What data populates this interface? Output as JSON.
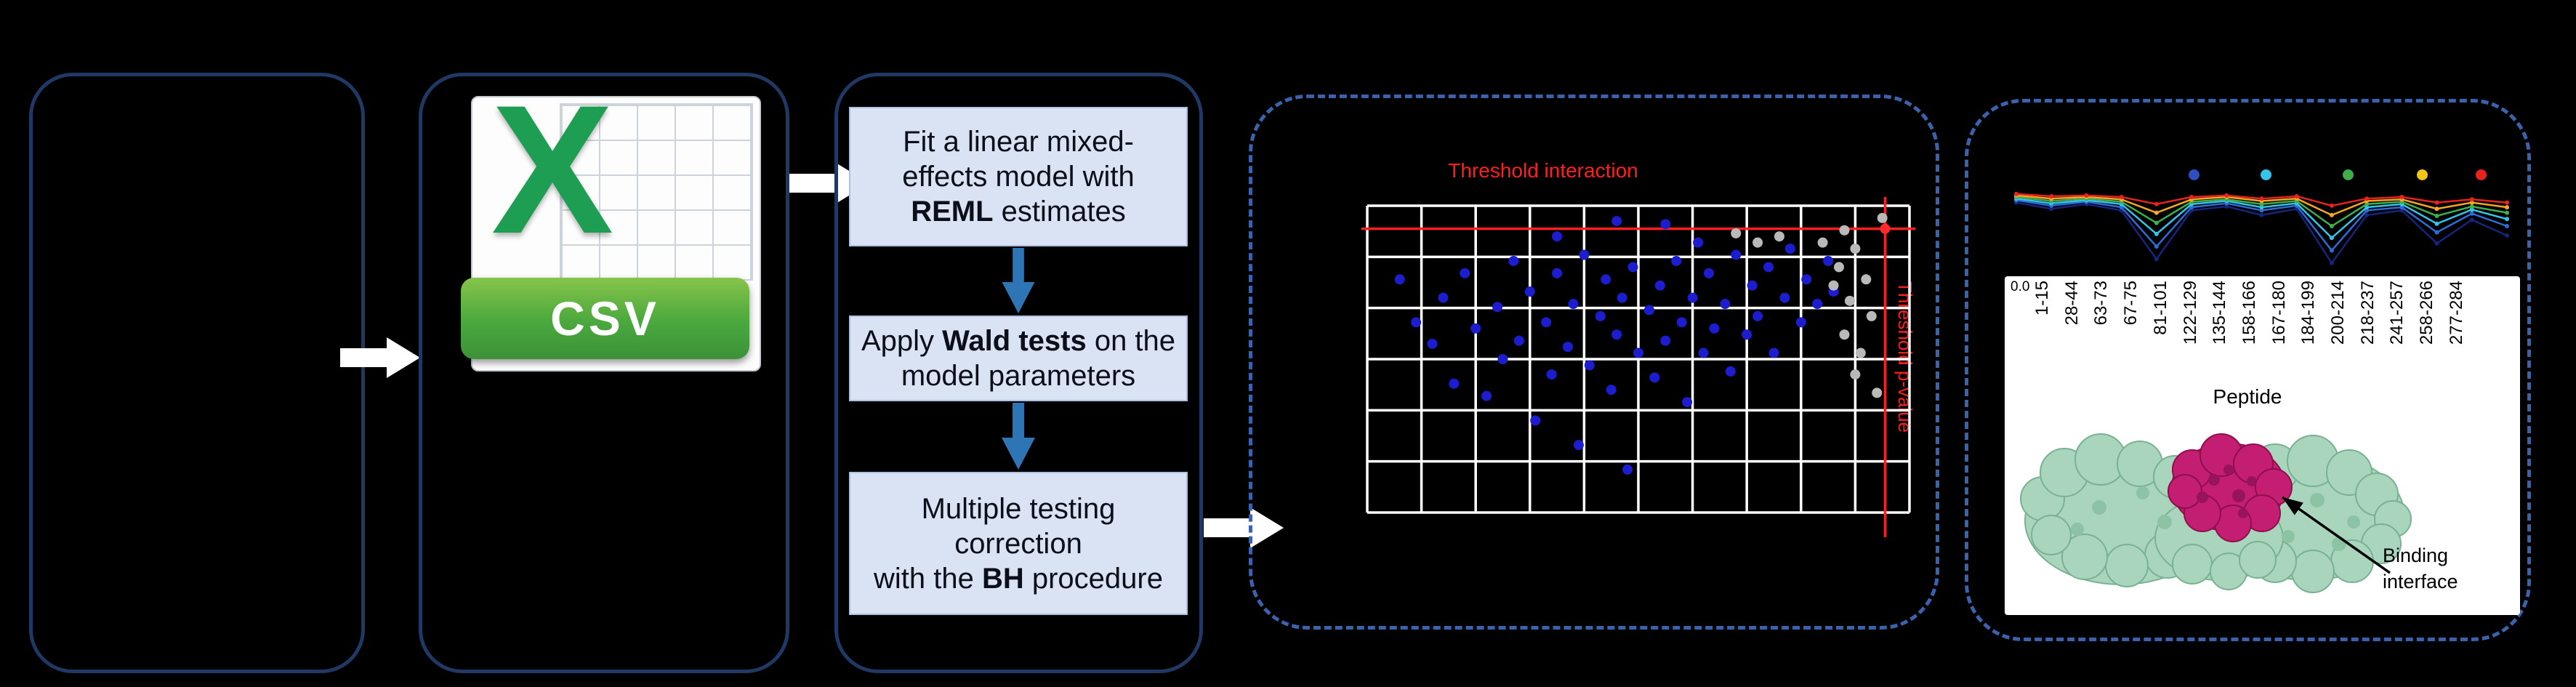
{
  "figure": {
    "csv_icon": {
      "letter": "X",
      "banner_label": "CSV"
    },
    "steps": {
      "step1": {
        "pre": "Fit a linear mixed-effects model with ",
        "bold": "REML",
        "post": " estimates"
      },
      "step2": {
        "pre": "Apply ",
        "bold": "Wald tests",
        "post": " on the model parameters"
      },
      "step3": {
        "line1": "Multiple testing correction",
        "pre": "with the ",
        "bold": "BH",
        "post": " procedure"
      }
    },
    "colors": {
      "solid_box_border": "#1f3864",
      "dashed_box_border": "#3a62ad",
      "step_box_fill": "#dae3f3",
      "step_arrow": "#2e75b6",
      "flow_arrow": "#ffffff"
    }
  },
  "chart_data": [
    {
      "name": "interaction-scatter",
      "type": "scatter",
      "annotations": {
        "threshold_interaction": "Threshold interaction",
        "threshold_pvalue": "Threshold p-value"
      },
      "threshold_color": "#ff1f1f",
      "grid": {
        "v_lines": 11,
        "h_lines": 7,
        "line_color": "#ffffff"
      },
      "hline_y_pct": 7.5,
      "vline_x_pct": 95.5,
      "series": [
        {
          "name": "significant-blue",
          "color": "#1d1dd0",
          "points": [
            [
              6,
              24
            ],
            [
              9,
              38
            ],
            [
              12,
              45
            ],
            [
              14,
              30
            ],
            [
              16,
              58
            ],
            [
              18,
              22
            ],
            [
              20,
              40
            ],
            [
              22,
              62
            ],
            [
              24,
              33
            ],
            [
              25,
              50
            ],
            [
              27,
              18
            ],
            [
              28,
              44
            ],
            [
              30,
              28
            ],
            [
              31,
              70
            ],
            [
              33,
              38
            ],
            [
              34,
              55
            ],
            [
              35,
              22
            ],
            [
              37,
              46
            ],
            [
              38,
              32
            ],
            [
              39,
              78
            ],
            [
              40,
              16
            ],
            [
              41,
              52
            ],
            [
              43,
              36
            ],
            [
              44,
              24
            ],
            [
              45,
              60
            ],
            [
              46,
              42
            ],
            [
              47,
              30
            ],
            [
              48,
              86
            ],
            [
              49,
              20
            ],
            [
              50,
              48
            ],
            [
              52,
              34
            ],
            [
              53,
              56
            ],
            [
              54,
              26
            ],
            [
              55,
              44
            ],
            [
              57,
              18
            ],
            [
              58,
              38
            ],
            [
              59,
              64
            ],
            [
              60,
              30
            ],
            [
              62,
              48
            ],
            [
              63,
              22
            ],
            [
              64,
              40
            ],
            [
              66,
              32
            ],
            [
              67,
              54
            ],
            [
              68,
              16
            ],
            [
              70,
              42
            ],
            [
              71,
              26
            ],
            [
              72,
              36
            ],
            [
              74,
              20
            ],
            [
              75,
              48
            ],
            [
              77,
              30
            ],
            [
              78,
              14
            ],
            [
              80,
              38
            ],
            [
              81,
              24
            ],
            [
              83,
              32
            ],
            [
              85,
              18
            ],
            [
              86,
              28
            ],
            [
              61,
              12
            ],
            [
              35,
              10
            ],
            [
              46,
              5
            ],
            [
              55,
              6
            ]
          ]
        },
        {
          "name": "nonsignificant-gray",
          "color": "#b9b9b9",
          "points": [
            [
              88,
              8
            ],
            [
              90,
              14
            ],
            [
              87,
              20
            ],
            [
              92,
              24
            ],
            [
              89,
              31
            ],
            [
              93,
              36
            ],
            [
              88,
              42
            ],
            [
              91,
              48
            ],
            [
              90,
              55
            ],
            [
              94,
              61
            ],
            [
              86,
              26
            ],
            [
              84,
              12
            ],
            [
              68,
              9
            ],
            [
              72,
              12
            ],
            [
              76,
              10
            ],
            [
              95,
              4
            ]
          ]
        },
        {
          "name": "threshold-red",
          "color": "#ff2a2a",
          "points": [
            [
              95.5,
              7.5
            ]
          ]
        }
      ]
    },
    {
      "name": "peptide-profile",
      "type": "line",
      "x_tick_labels": [
        "1-15",
        "28-44",
        "63-73",
        "67-75",
        "81-101",
        "122-129",
        "135-144",
        "158-166",
        "167-180",
        "184-199",
        "200-214",
        "218-237",
        "241-257",
        "258-266",
        "277-284"
      ],
      "xlabel": "Peptide",
      "y_tick_label": "0.0",
      "legend_dot_colors": [
        "#2f4fc1",
        "#35c4e8",
        "#3faf4c",
        "#f0c419",
        "#e82121"
      ],
      "series": [
        {
          "name": "navy",
          "color": "#16247e",
          "values": [
            0.2,
            0.28,
            0.22,
            0.3,
            0.92,
            0.3,
            0.25,
            0.36,
            0.28,
            0.97,
            0.36,
            0.3,
            0.72,
            0.42,
            0.62
          ]
        },
        {
          "name": "blue",
          "color": "#2e6bd6",
          "values": [
            0.17,
            0.24,
            0.19,
            0.26,
            0.76,
            0.26,
            0.21,
            0.3,
            0.24,
            0.81,
            0.3,
            0.26,
            0.58,
            0.34,
            0.5
          ]
        },
        {
          "name": "cyan",
          "color": "#35c4e8",
          "values": [
            0.15,
            0.21,
            0.17,
            0.22,
            0.6,
            0.22,
            0.18,
            0.26,
            0.21,
            0.65,
            0.26,
            0.22,
            0.47,
            0.29,
            0.41
          ]
        },
        {
          "name": "green",
          "color": "#3faf4c",
          "values": [
            0.13,
            0.18,
            0.15,
            0.19,
            0.46,
            0.19,
            0.16,
            0.22,
            0.18,
            0.5,
            0.22,
            0.19,
            0.37,
            0.25,
            0.33
          ]
        },
        {
          "name": "orange",
          "color": "#f5a623",
          "values": [
            0.11,
            0.15,
            0.13,
            0.16,
            0.33,
            0.16,
            0.13,
            0.18,
            0.15,
            0.36,
            0.18,
            0.16,
            0.28,
            0.2,
            0.26
          ]
        },
        {
          "name": "red",
          "color": "#e82121",
          "values": [
            0.09,
            0.12,
            0.11,
            0.13,
            0.22,
            0.13,
            0.11,
            0.15,
            0.12,
            0.24,
            0.15,
            0.13,
            0.2,
            0.16,
            0.2
          ]
        }
      ]
    }
  ],
  "protein_panel": {
    "annotation_line1": "Binding",
    "annotation_line2": "interface",
    "surface_color": "#a8d5bb",
    "interface_color": "#c41e72"
  }
}
